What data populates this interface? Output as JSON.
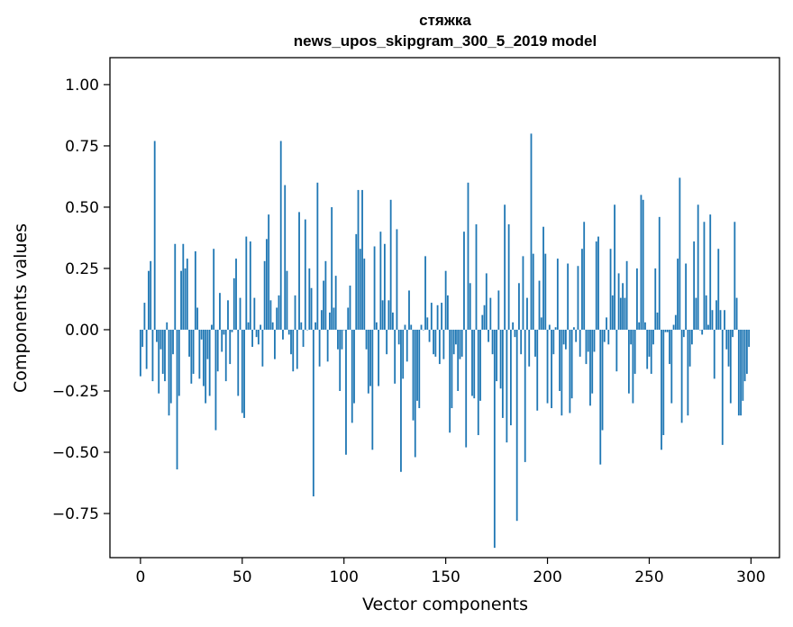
{
  "chart_data": {
    "type": "bar",
    "title_line1": "стяжка",
    "title_line2": "news_upos_skipgram_300_5_2019 model",
    "xlabel": "Vector components",
    "ylabel": "Components values",
    "xlim": [
      -15,
      314
    ],
    "ylim": [
      -0.93,
      1.11
    ],
    "xticks": [
      {
        "value": 0,
        "label": "0"
      },
      {
        "value": 50,
        "label": "50"
      },
      {
        "value": 100,
        "label": "100"
      },
      {
        "value": 150,
        "label": "150"
      },
      {
        "value": 200,
        "label": "200"
      },
      {
        "value": 250,
        "label": "250"
      },
      {
        "value": 300,
        "label": "300"
      }
    ],
    "yticks": [
      {
        "value": 1.0,
        "label": "1.00"
      },
      {
        "value": 0.75,
        "label": "0.75"
      },
      {
        "value": 0.5,
        "label": "0.50"
      },
      {
        "value": 0.25,
        "label": "0.25"
      },
      {
        "value": 0.0,
        "label": "0.00"
      },
      {
        "value": -0.25,
        "label": "−0.25"
      },
      {
        "value": -0.5,
        "label": "−0.50"
      },
      {
        "value": -0.75,
        "label": "−0.75"
      }
    ],
    "bar_color": "#1f77b4",
    "values": [
      -0.19,
      -0.07,
      0.11,
      -0.16,
      0.24,
      0.28,
      -0.21,
      0.77,
      -0.05,
      -0.26,
      -0.08,
      -0.18,
      -0.21,
      0.03,
      -0.35,
      -0.3,
      -0.1,
      0.35,
      -0.57,
      -0.27,
      0.24,
      0.35,
      0.25,
      0.29,
      -0.11,
      -0.22,
      -0.18,
      0.32,
      0.09,
      -0.2,
      -0.04,
      -0.23,
      -0.3,
      -0.12,
      -0.27,
      0.02,
      0.33,
      -0.41,
      -0.17,
      0.15,
      -0.09,
      -0.02,
      -0.21,
      0.12,
      -0.14,
      -0.01,
      0.21,
      0.29,
      -0.27,
      0.13,
      -0.34,
      -0.36,
      0.38,
      0.03,
      0.36,
      -0.07,
      0.13,
      -0.03,
      -0.06,
      0.02,
      -0.15,
      0.28,
      0.37,
      0.47,
      0.12,
      0.03,
      -0.12,
      0.09,
      0.14,
      0.77,
      -0.04,
      0.59,
      0.24,
      -0.02,
      -0.1,
      -0.17,
      0.14,
      -0.16,
      0.48,
      0.03,
      -0.07,
      0.45,
      0.0,
      0.25,
      0.17,
      -0.68,
      0.03,
      0.6,
      -0.15,
      0.08,
      0.2,
      0.28,
      -0.13,
      0.07,
      0.5,
      0.09,
      0.22,
      -0.08,
      -0.25,
      -0.08,
      0.0,
      -0.51,
      0.09,
      0.18,
      -0.38,
      -0.3,
      0.39,
      0.57,
      0.33,
      0.57,
      0.29,
      -0.08,
      -0.26,
      -0.23,
      -0.49,
      0.34,
      0.03,
      -0.23,
      0.4,
      0.12,
      0.35,
      -0.1,
      0.12,
      0.53,
      0.07,
      -0.22,
      0.41,
      -0.06,
      -0.58,
      -0.2,
      0.02,
      -0.13,
      0.16,
      0.02,
      -0.37,
      -0.52,
      -0.29,
      -0.32,
      0.02,
      0.0,
      0.3,
      0.05,
      -0.05,
      0.11,
      -0.1,
      -0.11,
      0.1,
      -0.14,
      0.11,
      -0.12,
      0.24,
      0.14,
      -0.42,
      -0.32,
      -0.1,
      -0.06,
      -0.25,
      -0.12,
      -0.11,
      0.4,
      -0.48,
      0.6,
      0.19,
      -0.27,
      -0.28,
      0.43,
      -0.43,
      -0.29,
      0.06,
      0.1,
      0.23,
      -0.05,
      0.13,
      -0.1,
      -0.89,
      -0.21,
      0.16,
      -0.24,
      -0.36,
      0.51,
      -0.46,
      0.43,
      -0.39,
      0.03,
      -0.03,
      -0.78,
      0.19,
      -0.1,
      0.3,
      -0.54,
      0.13,
      -0.15,
      0.8,
      0.31,
      -0.11,
      -0.33,
      0.2,
      0.05,
      0.42,
      0.31,
      -0.3,
      0.02,
      -0.32,
      -0.1,
      0.01,
      0.29,
      -0.25,
      -0.35,
      -0.06,
      -0.08,
      0.27,
      -0.34,
      -0.28,
      0.01,
      -0.05,
      0.26,
      -0.11,
      0.33,
      0.44,
      -0.14,
      -0.09,
      -0.31,
      -0.26,
      -0.09,
      0.36,
      0.38,
      -0.55,
      -0.41,
      -0.05,
      0.05,
      -0.06,
      0.33,
      0.14,
      0.51,
      -0.17,
      0.23,
      0.13,
      0.19,
      0.13,
      0.28,
      -0.26,
      -0.06,
      -0.3,
      -0.18,
      0.25,
      0.03,
      0.55,
      0.53,
      0.03,
      -0.16,
      -0.11,
      -0.18,
      -0.06,
      0.25,
      0.07,
      0.46,
      -0.49,
      -0.43,
      -0.01,
      -0.01,
      -0.14,
      -0.3,
      0.02,
      0.06,
      0.29,
      0.62,
      -0.38,
      -0.03,
      0.27,
      -0.35,
      -0.15,
      -0.06,
      0.36,
      0.13,
      0.51,
      0.0,
      -0.02,
      0.44,
      0.14,
      0.02,
      0.47,
      0.08,
      -0.2,
      0.12,
      0.33,
      0.08,
      -0.47,
      0.08,
      -0.08,
      -0.15,
      -0.3,
      -0.03,
      0.44,
      0.13,
      -0.35,
      -0.35,
      -0.29,
      -0.21,
      -0.18,
      -0.07
    ]
  }
}
